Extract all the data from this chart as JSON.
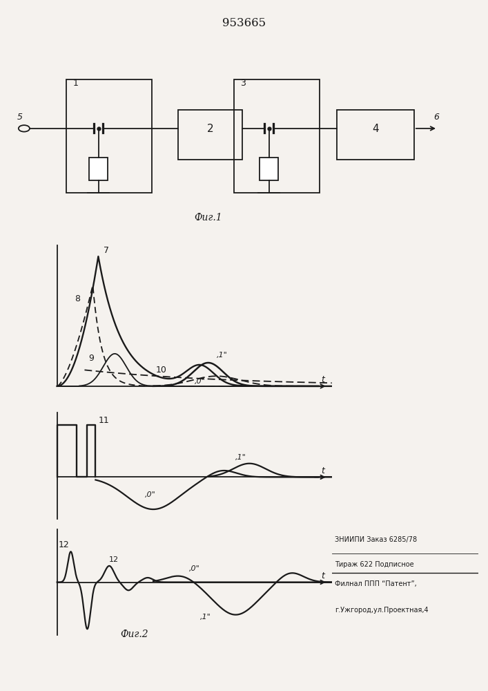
{
  "title": "953665",
  "background": "#f5f2ee",
  "line_color": "#1a1a1a",
  "patent_line1": "ЗНИИПИ Заказ 6285/78",
  "patent_line2": "Тираж 622 Подписное",
  "patent_line3": "Филнал ППП “Патент”,",
  "patent_line4": "г.Ужгород,ул.Проектная,4"
}
